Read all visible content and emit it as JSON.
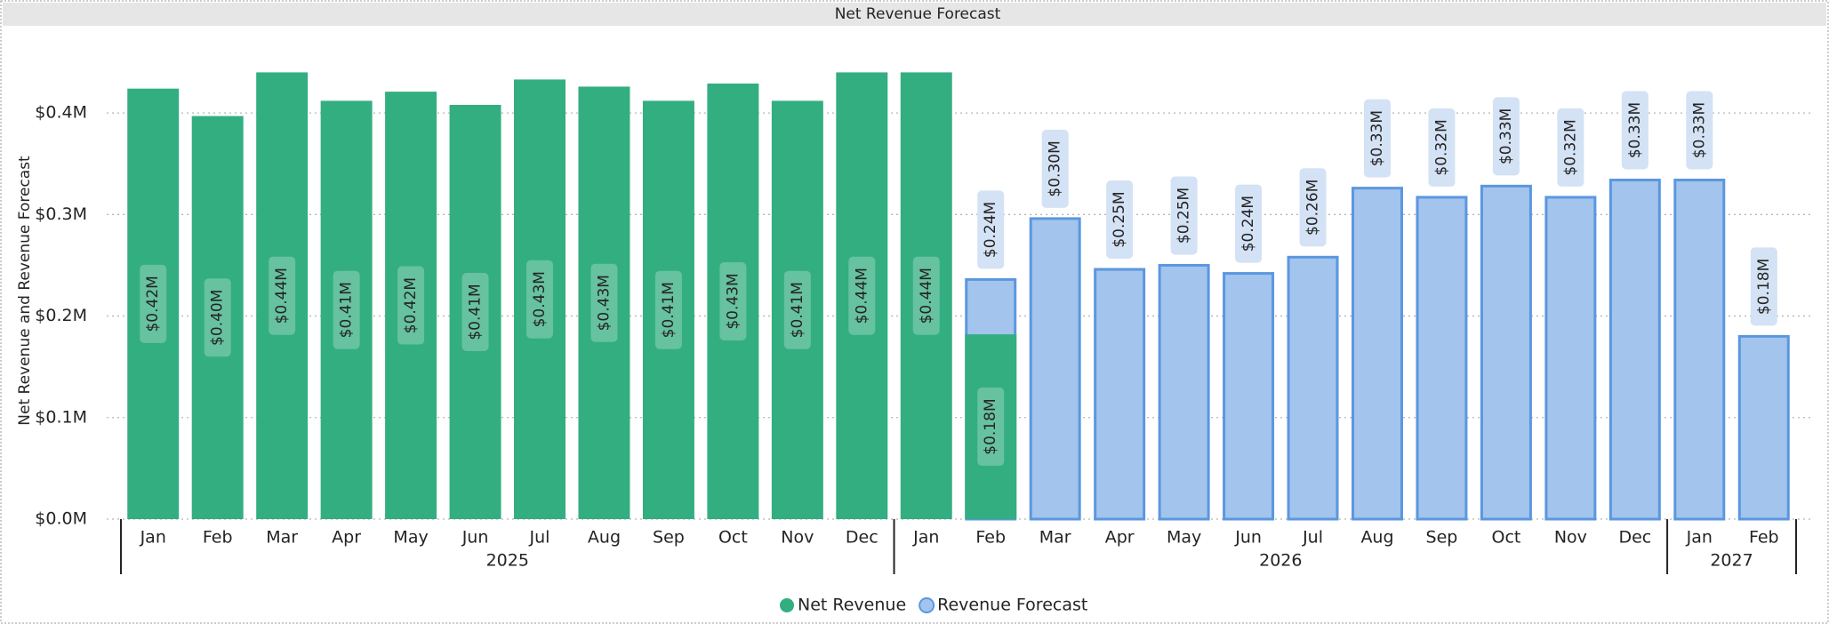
{
  "chart_data": {
    "type": "bar",
    "title": "Net Revenue Forecast",
    "y_label": "Net Revenue and Revenue Forecast",
    "categories": [
      "Jan",
      "Feb",
      "Mar",
      "Apr",
      "May",
      "Jun",
      "Jul",
      "Aug",
      "Sep",
      "Oct",
      "Nov",
      "Dec",
      "Jan",
      "Feb",
      "Mar",
      "Apr",
      "May",
      "Jun",
      "Jul",
      "Aug",
      "Sep",
      "Oct",
      "Nov",
      "Dec",
      "Jan",
      "Feb"
    ],
    "years": [
      "2025",
      "2025",
      "2025",
      "2025",
      "2025",
      "2025",
      "2025",
      "2025",
      "2025",
      "2025",
      "2025",
      "2025",
      "2026",
      "2026",
      "2026",
      "2026",
      "2026",
      "2026",
      "2026",
      "2026",
      "2026",
      "2026",
      "2026",
      "2026",
      "2027",
      "2027"
    ],
    "series": [
      {
        "name": "Net Revenue",
        "color": "#33ae81",
        "stroke": null,
        "values": [
          0.424,
          0.397,
          0.44,
          0.412,
          0.421,
          0.408,
          0.433,
          0.426,
          0.412,
          0.429,
          0.412,
          0.44,
          0.44,
          0.182,
          null,
          null,
          null,
          null,
          null,
          null,
          null,
          null,
          null,
          null,
          null,
          null
        ],
        "value_labels": [
          "$0.42M",
          "$0.40M",
          "$0.44M",
          "$0.41M",
          "$0.42M",
          "$0.41M",
          "$0.43M",
          "$0.43M",
          "$0.41M",
          "$0.43M",
          "$0.41M",
          "$0.44M",
          "$0.44M",
          "$0.18M",
          null,
          null,
          null,
          null,
          null,
          null,
          null,
          null,
          null,
          null,
          null,
          null
        ]
      },
      {
        "name": "Revenue Forecast",
        "color": "#a3c4ec",
        "stroke": "#5b97e0",
        "values": [
          null,
          null,
          null,
          null,
          null,
          null,
          null,
          null,
          null,
          null,
          null,
          null,
          null,
          0.236,
          0.296,
          0.246,
          0.25,
          0.242,
          0.258,
          0.326,
          0.317,
          0.328,
          0.317,
          0.334,
          0.334,
          0.18
        ],
        "value_labels": [
          null,
          null,
          null,
          null,
          null,
          null,
          null,
          null,
          null,
          null,
          null,
          null,
          null,
          "$0.24M",
          "$0.30M",
          "$0.25M",
          "$0.25M",
          "$0.24M",
          "$0.26M",
          "$0.33M",
          "$0.32M",
          "$0.33M",
          "$0.32M",
          "$0.33M",
          "$0.33M",
          "$0.18M"
        ]
      }
    ],
    "ylim": [
      0,
      0.45
    ],
    "yticks": [
      {
        "value": 0,
        "label": "$0.0M"
      },
      {
        "value": 0.1,
        "label": "$0.1M"
      },
      {
        "value": 0.2,
        "label": "$0.2M"
      },
      {
        "value": 0.3,
        "label": "$0.3M"
      },
      {
        "value": 0.4,
        "label": "$0.4M"
      }
    ],
    "grid": true,
    "legend": "bottom"
  }
}
